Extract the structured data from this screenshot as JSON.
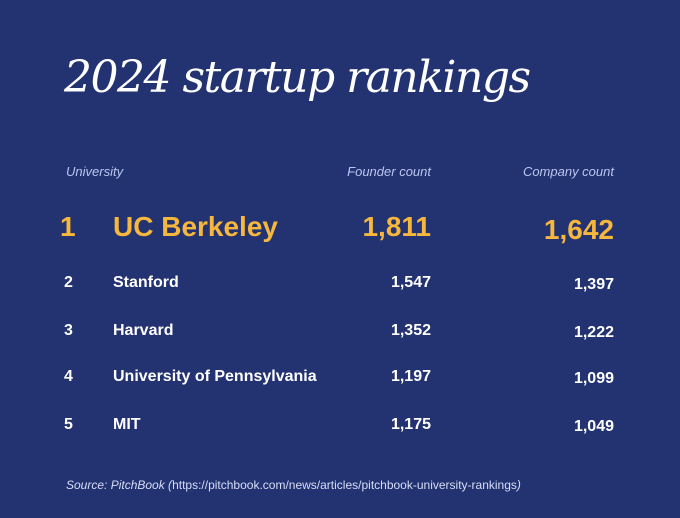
{
  "title": "2024 startup rankings",
  "headers": {
    "university": "University",
    "founder_count": "Founder count",
    "company_count": "Company count"
  },
  "rows": [
    {
      "rank": "1",
      "university": "UC Berkeley",
      "founder_count": "1,811",
      "company_count": "1,642"
    },
    {
      "rank": "2",
      "university": "Stanford",
      "founder_count": "1,547",
      "company_count": "1,397"
    },
    {
      "rank": "3",
      "university": "Harvard",
      "founder_count": "1,352",
      "company_count": "1,222"
    },
    {
      "rank": "4",
      "university": "University of Pennsylvania",
      "founder_count": "1,197",
      "company_count": "1,099"
    },
    {
      "rank": "5",
      "university": "MIT",
      "founder_count": "1,175",
      "company_count": "1,049"
    }
  ],
  "source": {
    "prefix": "Source: PitchBook (",
    "url": "https://pitchbook.com/news/articles/pitchbook-university-rankings",
    "suffix": ")"
  },
  "colors": {
    "background": "#233270",
    "highlight": "#f6b73c",
    "header_text": "#b9c6f0",
    "text": "#ffffff"
  }
}
